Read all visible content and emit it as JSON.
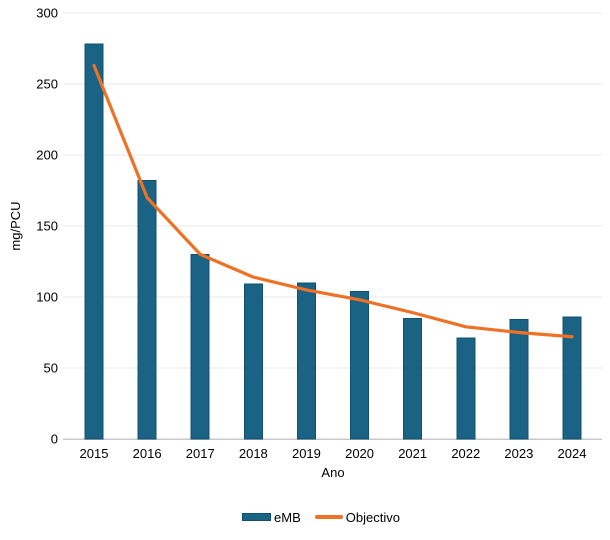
{
  "chart_data": {
    "type": "bar",
    "title": "",
    "categories": [
      "2015",
      "2016",
      "2017",
      "2018",
      "2019",
      "2020",
      "2021",
      "2022",
      "2023",
      "2024"
    ],
    "series": [
      {
        "name": "eMB",
        "type": "bar",
        "color": "#1a6384",
        "border_color": "#11506e",
        "values": [
          278,
          182,
          130,
          109,
          110,
          104,
          85,
          71,
          84,
          86
        ]
      },
      {
        "name": "Objectivo",
        "type": "line",
        "color": "#ee7125",
        "values": [
          263,
          170,
          130,
          114,
          105,
          98,
          89,
          79,
          75,
          72
        ]
      }
    ],
    "xlabel": "Ano",
    "ylabel": "mg/PCU",
    "ylim": [
      0,
      300
    ],
    "yticks": [
      0,
      50,
      100,
      150,
      200,
      250,
      300
    ],
    "grid": true,
    "legend_position": "bottom"
  },
  "legend": {
    "items": [
      {
        "label": "eMB",
        "marker": "bar-swatch",
        "color": "#1a6384"
      },
      {
        "label": "Objectivo",
        "marker": "line-swatch",
        "color": "#ee7125"
      }
    ]
  },
  "colors": {
    "background": "#ffffff",
    "gridline": "#e9e9e9",
    "axis_line": "#c9c9c9",
    "text": "#000000"
  }
}
